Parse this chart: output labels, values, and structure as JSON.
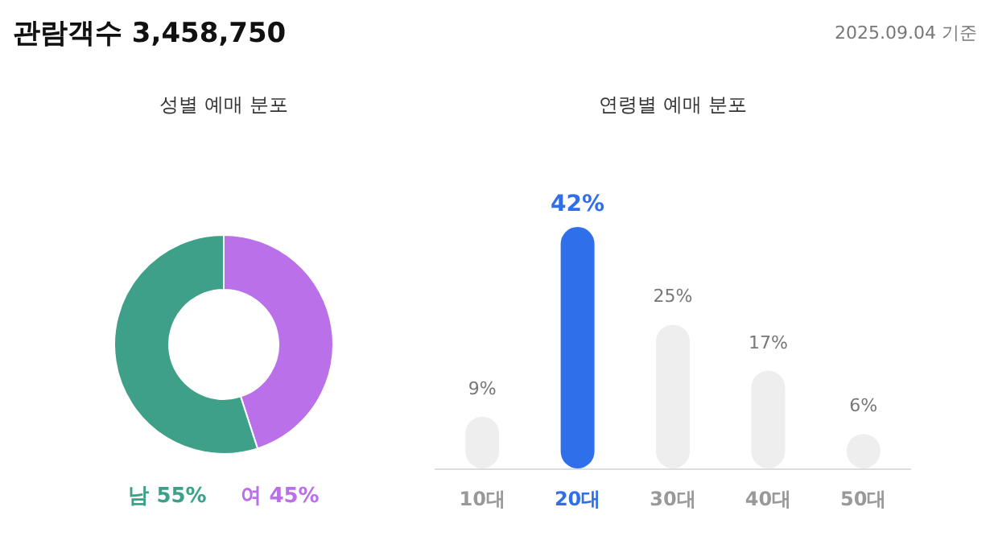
{
  "chart_data": [
    {
      "type": "other",
      "title": "관람객수 3,458,750",
      "annotations": [
        "2025.09.04 기준"
      ]
    },
    {
      "type": "donut",
      "title": "성별 예매 분포",
      "categories": [
        "남",
        "여"
      ],
      "values": [
        55,
        45
      ],
      "colors": [
        "#3fa08a",
        "#b970e8"
      ],
      "value_labels": [
        "55%",
        "45%"
      ]
    },
    {
      "type": "bar",
      "title": "연령별 예매 분포",
      "categories": [
        "10대",
        "20대",
        "30대",
        "40대",
        "50대"
      ],
      "values": [
        9,
        42,
        25,
        17,
        6
      ],
      "colors": [
        "#eeeeee",
        "#2f6fea",
        "#eeeeee",
        "#eeeeee",
        "#eeeeee"
      ],
      "value_labels": [
        "9%",
        "42%",
        "25%",
        "17%",
        "6%"
      ]
    }
  ]
}
